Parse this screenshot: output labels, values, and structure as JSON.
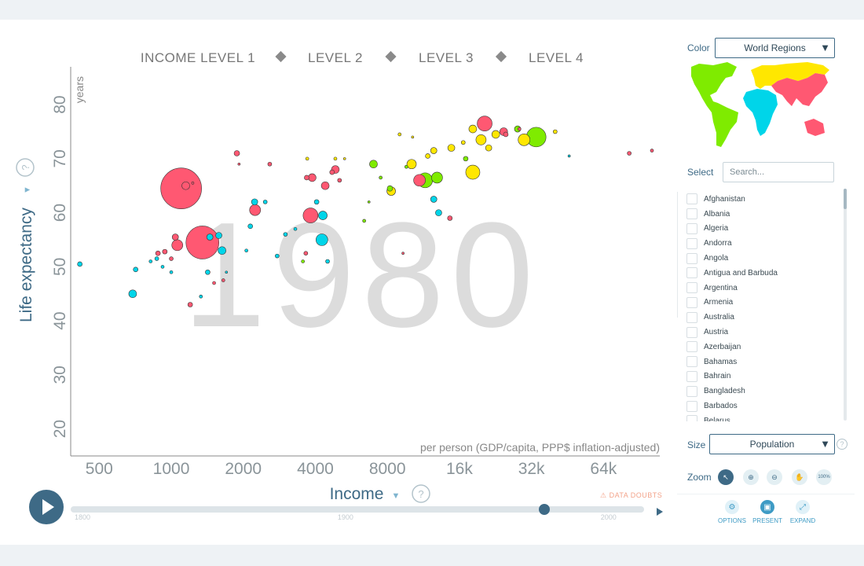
{
  "chart_data": {
    "type": "scatter",
    "year": "1980",
    "title": "",
    "xlabel": "Income",
    "x_subtitle": "per person (GDP/capita, PPP$ inflation-adjusted)",
    "ylabel": "Life expectancy",
    "y_unit": "years",
    "x_scale": "log",
    "xlim": [
      380,
      110000
    ],
    "ylim": [
      15,
      87
    ],
    "x_ticks": [
      "500",
      "1000",
      "2000",
      "4000",
      "8000",
      "16k",
      "32k",
      "64k"
    ],
    "x_tick_values": [
      500,
      1000,
      2000,
      4000,
      8000,
      16000,
      32000,
      64000
    ],
    "y_ticks": [
      "20",
      "30",
      "40",
      "50",
      "60",
      "70",
      "80"
    ],
    "y_tick_values": [
      20,
      30,
      40,
      50,
      60,
      70,
      80
    ],
    "income_levels": [
      "INCOME LEVEL 1",
      "LEVEL 2",
      "LEVEL 3",
      "LEVEL 4"
    ],
    "grid": false,
    "size_by": "Population",
    "color_by": "World Regions",
    "region_colors": {
      "africa": "#00d5e9",
      "asia": "#ff5872",
      "americas": "#7feb00",
      "europe": "#ffe700"
    },
    "points": [
      {
        "region": "asia",
        "x": 1100,
        "y": 64.5,
        "size": 26
      },
      {
        "region": "asia",
        "x": 1350,
        "y": 54.5,
        "size": 21
      },
      {
        "region": "asia",
        "x": 1040,
        "y": 55.5,
        "size": 4
      },
      {
        "region": "asia",
        "x": 1060,
        "y": 54,
        "size": 7
      },
      {
        "region": "asia",
        "x": 1150,
        "y": 65,
        "size": 5
      },
      {
        "region": "asia",
        "x": 1230,
        "y": 65.5,
        "size": 1.5
      },
      {
        "region": "asia",
        "x": 880,
        "y": 52.5,
        "size": 3
      },
      {
        "region": "asia",
        "x": 940,
        "y": 52.8,
        "size": 3
      },
      {
        "region": "asia",
        "x": 1000,
        "y": 51.5,
        "size": 2.5
      },
      {
        "region": "asia",
        "x": 1200,
        "y": 43,
        "size": 3
      },
      {
        "region": "asia",
        "x": 1880,
        "y": 71,
        "size": 3.5
      },
      {
        "region": "asia",
        "x": 1920,
        "y": 69,
        "size": 1.5
      },
      {
        "region": "asia",
        "x": 2580,
        "y": 69,
        "size": 2.5
      },
      {
        "region": "asia",
        "x": 3820,
        "y": 59.5,
        "size": 9.5
      },
      {
        "region": "asia",
        "x": 2240,
        "y": 60.5,
        "size": 7
      },
      {
        "region": "asia",
        "x": 3680,
        "y": 66.5,
        "size": 3
      },
      {
        "region": "asia",
        "x": 3880,
        "y": 66.5,
        "size": 5
      },
      {
        "region": "asia",
        "x": 4400,
        "y": 65,
        "size": 5
      },
      {
        "region": "asia",
        "x": 4700,
        "y": 67.5,
        "size": 3
      },
      {
        "region": "asia",
        "x": 4850,
        "y": 68,
        "size": 5
      },
      {
        "region": "asia",
        "x": 5050,
        "y": 66,
        "size": 2.5
      },
      {
        "region": "asia",
        "x": 10900,
        "y": 66,
        "size": 7.5
      },
      {
        "region": "asia",
        "x": 20400,
        "y": 76.5,
        "size": 9.5
      },
      {
        "region": "asia",
        "x": 24500,
        "y": 75,
        "size": 5
      },
      {
        "region": "asia",
        "x": 25000,
        "y": 74.5,
        "size": 3
      },
      {
        "region": "asia",
        "x": 28500,
        "y": 75.5,
        "size": 2
      },
      {
        "region": "asia",
        "x": 14600,
        "y": 59,
        "size": 3
      },
      {
        "region": "asia",
        "x": 9300,
        "y": 52.5,
        "size": 1.5
      },
      {
        "region": "asia",
        "x": 82000,
        "y": 71,
        "size": 2.5
      },
      {
        "region": "asia",
        "x": 102000,
        "y": 71.5,
        "size": 2
      },
      {
        "region": "asia",
        "x": 3650,
        "y": 52.5,
        "size": 2.5
      },
      {
        "region": "asia",
        "x": 1650,
        "y": 47.5,
        "size": 2
      },
      {
        "region": "asia",
        "x": 1510,
        "y": 47,
        "size": 2
      },
      {
        "region": "africa",
        "x": 415,
        "y": 50.5,
        "size": 3
      },
      {
        "region": "africa",
        "x": 690,
        "y": 45,
        "size": 5
      },
      {
        "region": "africa",
        "x": 710,
        "y": 49.5,
        "size": 3
      },
      {
        "region": "africa",
        "x": 820,
        "y": 51,
        "size": 2
      },
      {
        "region": "africa",
        "x": 870,
        "y": 51.5,
        "size": 2.5
      },
      {
        "region": "africa",
        "x": 920,
        "y": 50,
        "size": 2
      },
      {
        "region": "africa",
        "x": 1450,
        "y": 55.5,
        "size": 4
      },
      {
        "region": "africa",
        "x": 1580,
        "y": 55.8,
        "size": 4
      },
      {
        "region": "africa",
        "x": 1630,
        "y": 53,
        "size": 5
      },
      {
        "region": "africa",
        "x": 1420,
        "y": 49,
        "size": 3
      },
      {
        "region": "africa",
        "x": 1330,
        "y": 44.5,
        "size": 2
      },
      {
        "region": "africa",
        "x": 2060,
        "y": 53,
        "size": 2
      },
      {
        "region": "africa",
        "x": 2140,
        "y": 57.5,
        "size": 3
      },
      {
        "region": "africa",
        "x": 2230,
        "y": 62,
        "size": 4
      },
      {
        "region": "africa",
        "x": 2470,
        "y": 62,
        "size": 2.5
      },
      {
        "region": "africa",
        "x": 2770,
        "y": 52,
        "size": 2.5
      },
      {
        "region": "africa",
        "x": 3000,
        "y": 56,
        "size": 2.5
      },
      {
        "region": "africa",
        "x": 3300,
        "y": 57,
        "size": 2
      },
      {
        "region": "africa",
        "x": 4300,
        "y": 59.5,
        "size": 5.5
      },
      {
        "region": "africa",
        "x": 4260,
        "y": 55,
        "size": 7.5
      },
      {
        "region": "africa",
        "x": 4050,
        "y": 62,
        "size": 3
      },
      {
        "region": "africa",
        "x": 4500,
        "y": 51,
        "size": 2.5
      },
      {
        "region": "africa",
        "x": 12500,
        "y": 62.5,
        "size": 4
      },
      {
        "region": "africa",
        "x": 13100,
        "y": 60,
        "size": 4
      },
      {
        "region": "africa",
        "x": 1000,
        "y": 49,
        "size": 2
      },
      {
        "region": "africa",
        "x": 1700,
        "y": 49,
        "size": 1.5
      },
      {
        "region": "africa",
        "x": 46000,
        "y": 70.5,
        "size": 1.5
      },
      {
        "region": "americas",
        "x": 3550,
        "y": 51,
        "size": 2
      },
      {
        "region": "americas",
        "x": 6400,
        "y": 58.5,
        "size": 2
      },
      {
        "region": "americas",
        "x": 7000,
        "y": 69,
        "size": 5
      },
      {
        "region": "americas",
        "x": 7500,
        "y": 66.5,
        "size": 2
      },
      {
        "region": "americas",
        "x": 8200,
        "y": 64.5,
        "size": 3.5
      },
      {
        "region": "americas",
        "x": 9600,
        "y": 68.5,
        "size": 2
      },
      {
        "region": "americas",
        "x": 11500,
        "y": 66,
        "size": 9.5
      },
      {
        "region": "americas",
        "x": 12900,
        "y": 66.5,
        "size": 7
      },
      {
        "region": "americas",
        "x": 17000,
        "y": 70,
        "size": 3
      },
      {
        "region": "americas",
        "x": 33500,
        "y": 74,
        "size": 12.5
      },
      {
        "region": "americas",
        "x": 28000,
        "y": 75.5,
        "size": 4
      },
      {
        "region": "americas",
        "x": 6700,
        "y": 62,
        "size": 1.5
      },
      {
        "region": "europe",
        "x": 3700,
        "y": 70,
        "size": 2
      },
      {
        "region": "europe",
        "x": 4850,
        "y": 70,
        "size": 2
      },
      {
        "region": "europe",
        "x": 5300,
        "y": 70,
        "size": 1.5
      },
      {
        "region": "europe",
        "x": 8300,
        "y": 64,
        "size": 5.5
      },
      {
        "region": "europe",
        "x": 10100,
        "y": 69,
        "size": 6
      },
      {
        "region": "europe",
        "x": 11800,
        "y": 70.5,
        "size": 3
      },
      {
        "region": "europe",
        "x": 12500,
        "y": 71.5,
        "size": 4
      },
      {
        "region": "europe",
        "x": 14800,
        "y": 72,
        "size": 4.5
      },
      {
        "region": "europe",
        "x": 16600,
        "y": 73,
        "size": 2.5
      },
      {
        "region": "europe",
        "x": 18200,
        "y": 75.5,
        "size": 5
      },
      {
        "region": "europe",
        "x": 18200,
        "y": 67.5,
        "size": 9
      },
      {
        "region": "europe",
        "x": 19700,
        "y": 73.5,
        "size": 6.5
      },
      {
        "region": "europe",
        "x": 21200,
        "y": 72,
        "size": 4
      },
      {
        "region": "europe",
        "x": 22700,
        "y": 74.5,
        "size": 5
      },
      {
        "region": "europe",
        "x": 29800,
        "y": 73.5,
        "size": 7.5
      },
      {
        "region": "europe",
        "x": 40200,
        "y": 75,
        "size": 2.5
      },
      {
        "region": "europe",
        "x": 10200,
        "y": 74,
        "size": 1.5
      },
      {
        "region": "europe",
        "x": 9000,
        "y": 74.5,
        "size": 2
      }
    ]
  },
  "panel": {
    "color_label": "Color",
    "color_value": "World Regions",
    "select_label": "Select",
    "search_placeholder": "Search...",
    "countries": [
      "Afghanistan",
      "Albania",
      "Algeria",
      "Andorra",
      "Angola",
      "Antigua and Barbuda",
      "Argentina",
      "Armenia",
      "Australia",
      "Austria",
      "Azerbaijan",
      "Bahamas",
      "Bahrain",
      "Bangladesh",
      "Barbados",
      "Belarus"
    ],
    "size_label": "Size",
    "size_value": "Population",
    "size_help": "?",
    "zoom_label": "Zoom",
    "zoom_buttons": [
      {
        "name": "zoom-pointer-button",
        "icon": "pointer-icon",
        "glyph": "↖",
        "active": true
      },
      {
        "name": "zoom-in-button",
        "icon": "zoom-in-icon",
        "glyph": "⊕",
        "active": false
      },
      {
        "name": "zoom-out-button",
        "icon": "zoom-out-icon",
        "glyph": "⊖",
        "active": false
      },
      {
        "name": "zoom-pan-button",
        "icon": "hand-icon",
        "glyph": "✋",
        "active": false
      },
      {
        "name": "zoom-reset-button",
        "icon": "reset-icon",
        "glyph": "100%",
        "active": false
      }
    ],
    "bottom_buttons": [
      {
        "name": "options-button",
        "icon": "gear-icon",
        "glyph": "⚙",
        "label": "OPTIONS",
        "active": false
      },
      {
        "name": "present-button",
        "icon": "present-icon",
        "glyph": "▣",
        "label": "PRESENT",
        "active": true
      },
      {
        "name": "expand-button",
        "icon": "expand-icon",
        "glyph": "⤢",
        "label": "EXPAND",
        "active": false
      }
    ]
  },
  "timeline": {
    "labels": [
      "1800",
      "1900",
      "2000"
    ],
    "label_years": [
      1800,
      1900,
      2000
    ],
    "range": [
      1800,
      2018
    ],
    "current": 1980,
    "data_doubts": "⚠ DATA DOUBTS"
  }
}
